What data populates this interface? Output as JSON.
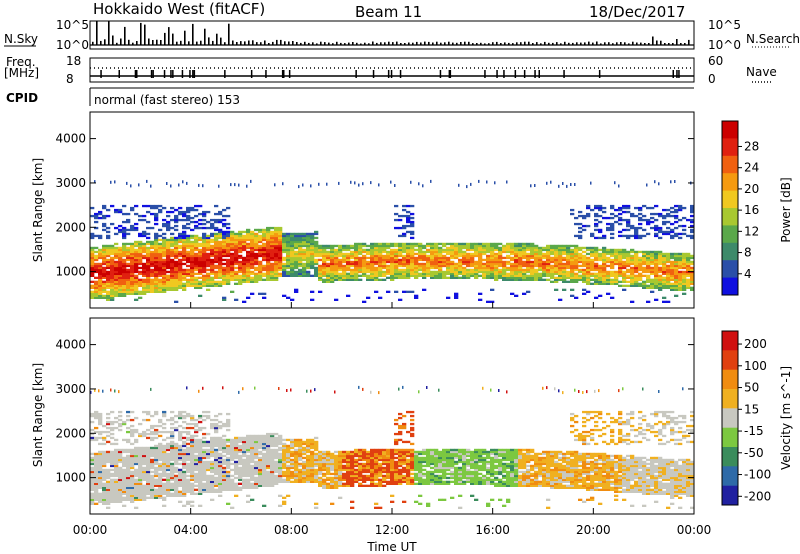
{
  "header": {
    "radar": "Hokkaido West (fitACF)",
    "beam": "Beam 11",
    "date": "18/Dec/2017"
  },
  "strip_labels": {
    "nsky": "N.Sky",
    "nsearch": "N.Search",
    "freq": "Freq.",
    "mhz": "[MHz]",
    "nave": "Nave",
    "cpid": "CPID",
    "nsky_top": "10^5",
    "nsky_bot": "10^0",
    "nsearch_top": "10^5",
    "nsearch_bot": "10^0",
    "freq_top": "18",
    "freq_bot": "8",
    "nave_top": "60",
    "nave_bot": "0",
    "mode": "normal (fast stereo) 153"
  },
  "chart_data": [
    {
      "type": "heatmap",
      "name": "power",
      "ylabel": "Slant Range [km]",
      "ylim": [
        180,
        4600
      ],
      "yticks": [
        "1000",
        "2000",
        "3000",
        "4000"
      ],
      "ytick_values": [
        1000,
        2000,
        3000,
        4000
      ],
      "colorbar_label": "Power [dB]",
      "colorbar_ticks": [
        "4",
        "8",
        "12",
        "16",
        "20",
        "24",
        "28"
      ],
      "colors": [
        "#1010e0",
        "#2a4fa8",
        "#3d8a6a",
        "#5aa84a",
        "#a8c830",
        "#f0c820",
        "#f59a10",
        "#f06010",
        "#e02010",
        "#cc0000"
      ]
    },
    {
      "type": "heatmap",
      "name": "velocity",
      "ylabel": "Slant Range [km]",
      "ylim": [
        180,
        4600
      ],
      "yticks": [
        "1000",
        "2000",
        "3000",
        "4000"
      ],
      "ytick_values": [
        1000,
        2000,
        3000,
        4000
      ],
      "colorbar_label": "Velocity [m s^-1]",
      "colorbar_ticks": [
        "200",
        "100",
        "50",
        "15",
        "-15",
        "-50",
        "-100",
        "-200"
      ],
      "colors": [
        "#2020a0",
        "#2e6aa8",
        "#3a8c5c",
        "#7cc840",
        "#c8c8c0",
        "#f0b020",
        "#f08c10",
        "#e04010",
        "#d01010"
      ]
    }
  ],
  "xaxis": {
    "label": "Time UT",
    "ticks": [
      "00:00",
      "04:00",
      "08:00",
      "12:00",
      "16:00",
      "20:00",
      "00:00"
    ]
  }
}
